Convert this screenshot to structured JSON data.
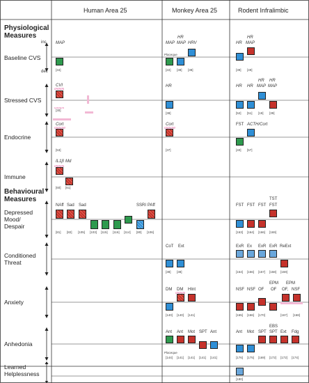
{
  "headers": {
    "human": "Human Area 25",
    "monkey": "Monkey Area 25",
    "rodent": "Rodent Infralimbic"
  },
  "sections": {
    "physiological_l1": "Physiological",
    "physiological_l2": "Measures",
    "behavioural_l1": "Behavioural",
    "behavioural_l2": "Measures"
  },
  "axis": {
    "inc": "inc",
    "dec": "dec"
  },
  "rows": {
    "baseline": "Baseline CVS",
    "stressed": "Stressed CVS",
    "endocrine": "Endocrine",
    "immune": "Immune",
    "depressed_l1": "Depressed",
    "depressed_l2": "Mood/",
    "depressed_l3": "Despair",
    "conditioned_l1": "Conditioned",
    "conditioned_l2": "Threat",
    "anxiety": "Anxiety",
    "anhedonia": "Anhedonia",
    "learned_l1": "Learned",
    "learned_l2": "Helplessness"
  },
  "human": {
    "map": "MAP",
    "r34": "[34]",
    "cvi": "CVI",
    "r30": "[30]",
    "cort": "Cort",
    "r53": "[53]",
    "il1b": "IL1β",
    "md": "Md",
    "r60": "[60]",
    "r61": "[61]",
    "naff": "NAff",
    "sad1": "Sad",
    "sad2": "Sad",
    "ssri": "SSRI",
    "paff": "PAff",
    "r81": "[81]",
    "r82": "[82]",
    "r105": "[105]",
    "r103": "[103]",
    "r115": "[115]",
    "r116": "[116]",
    "r114": "[114]",
    "r80": "[80]",
    "r106": "[106]"
  },
  "monkey": {
    "hr": "HR",
    "map": "MAP",
    "hrv": "HRV",
    "placeque": "Placeque",
    "r22": "[22]",
    "r38a": "[38]",
    "r38b": "[38]",
    "hr2": "HR",
    "r38c": "[38]",
    "cort": "Cort",
    "r37": "[37]",
    "cot": "CoT",
    "ext": "Ext",
    "r38d": "[38]",
    "r38e": "[38]",
    "dm1": "DM",
    "dm2": "DM",
    "hint": "HInt",
    "r140a": "[140]",
    "r140b": "[140]",
    "r141": "[141]",
    "ant1": "Ant",
    "ant2": "Ant",
    "mot": "Mot",
    "spt": "SPT",
    "ant3": "Ant",
    "placeque2": "Placeque",
    "r144": "[144]",
    "r141a": "[141]",
    "r141b": "[141]",
    "r141c": "[141]",
    "r141d": "[141]"
  },
  "rodent": {
    "hr1": "HR",
    "hr2": "HR",
    "map1": "MAP",
    "r39": "[39]",
    "r49": "[49]",
    "hr3": "HR",
    "hr4": "HR",
    "hr5": "HR",
    "map2": "MAP",
    "hr6": "HR",
    "map3": "MAP",
    "r52": "[52]",
    "r51": "[51]",
    "r19": "[19]",
    "r39b": "[39]",
    "fst": "FST",
    "acth": "ACTH/Cort",
    "r40": "[40]",
    "r57": "[57]",
    "fst1": "FST",
    "fst2": "FST",
    "fst3": "FST",
    "tst": "TST",
    "fst4": "FST",
    "r163": "[163]",
    "r164": "[164]",
    "r166": "[166]",
    "r169": "[169]",
    "exr1": "ExR",
    "ex": "Ex",
    "exr2": "ExR",
    "exr3": "ExR",
    "reext": "ReExt",
    "r154": "[154]",
    "r156": "[156]",
    "r157": "[157]",
    "r158": "[158]",
    "r159": "[159]",
    "nsf1": "NSF",
    "nsf2": "NSF",
    "of1": "OF",
    "epm1": "EPM",
    "of2": "OF",
    "epm2": "EPM",
    "of3": "OF,",
    "nsf3": "NSF",
    "r165": "[165]",
    "r166b": "[166]",
    "r170": "[170]",
    "r167": "[167]",
    "r168": "[168]",
    "ant1": "Ant",
    "mot": "Mot",
    "spt": "SPT",
    "ebs": "EBS",
    "spt2": "SPT",
    "ext": "Ext",
    "fdg": "Fdg",
    "r176": "[176]",
    "r175": "[175]",
    "r169b": "[169]",
    "r172": "[172]",
    "r172b": "[172]",
    "r174": "[174]",
    "r180": "[180]"
  }
}
